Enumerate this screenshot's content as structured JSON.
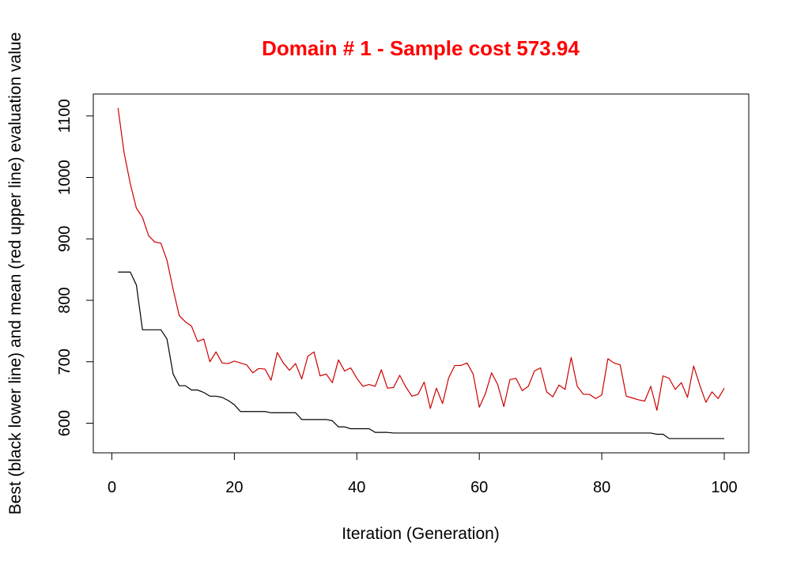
{
  "chart_data": {
    "type": "line",
    "title": "Domain # 1  - Sample cost 573.94",
    "xlabel": "Iteration (Generation)",
    "ylabel": "Best (black lower line) and mean (red upper line) evaluation value",
    "xlim": [
      1,
      100
    ],
    "ylim": [
      555,
      1135
    ],
    "xticks": [
      0,
      20,
      40,
      60,
      80,
      100
    ],
    "yticks": [
      600,
      700,
      800,
      900,
      1000,
      1100
    ],
    "grid": false,
    "legend": "none",
    "x": [
      1,
      2,
      3,
      4,
      5,
      6,
      7,
      8,
      9,
      10,
      11,
      12,
      13,
      14,
      15,
      16,
      17,
      18,
      19,
      20,
      21,
      22,
      23,
      24,
      25,
      26,
      27,
      28,
      29,
      30,
      31,
      32,
      33,
      34,
      35,
      36,
      37,
      38,
      39,
      40,
      41,
      42,
      43,
      44,
      45,
      46,
      47,
      48,
      49,
      50,
      51,
      52,
      53,
      54,
      55,
      56,
      57,
      58,
      59,
      60,
      61,
      62,
      63,
      64,
      65,
      66,
      67,
      68,
      69,
      70,
      71,
      72,
      73,
      74,
      75,
      76,
      77,
      78,
      79,
      80,
      81,
      82,
      83,
      84,
      85,
      86,
      87,
      88,
      89,
      90,
      91,
      92,
      93,
      94,
      95,
      96,
      97,
      98,
      99,
      100
    ],
    "series": [
      {
        "color": "#cc0000",
        "values": [
          1113,
          1040,
          990,
          950,
          935,
          905,
          895,
          893,
          865,
          818,
          775,
          765,
          758,
          733,
          737,
          700,
          716,
          698,
          697,
          701,
          698,
          695,
          682,
          689,
          688,
          670,
          715,
          698,
          686,
          697,
          672,
          709,
          716,
          677,
          680,
          666,
          703,
          685,
          690,
          673,
          660,
          663,
          660,
          687,
          657,
          658,
          678,
          659,
          644,
          647,
          667,
          624,
          657,
          632,
          674,
          694,
          694,
          698,
          680,
          626,
          648,
          682,
          663,
          627,
          671,
          673,
          653,
          660,
          685,
          690,
          651,
          643,
          662,
          655,
          707,
          660,
          647,
          647,
          640,
          646,
          705,
          698,
          695,
          644,
          641,
          638,
          636,
          660,
          621,
          677,
          673,
          655,
          666,
          642,
          693,
          662,
          634,
          651,
          640,
          657
        ]
      },
      {
        "color": "#000000",
        "values": [
          846,
          846,
          846,
          825,
          752,
          752,
          752,
          752,
          737,
          680,
          661,
          661,
          654,
          654,
          650,
          644,
          644,
          642,
          637,
          630,
          619,
          619,
          619,
          619,
          619,
          617,
          617,
          617,
          617,
          617,
          606,
          606,
          606,
          606,
          606,
          604,
          594,
          594,
          591,
          591,
          591,
          591,
          585,
          585,
          585,
          584,
          584,
          584,
          584,
          584,
          584,
          584,
          584,
          584,
          584,
          584,
          584,
          584,
          584,
          584,
          584,
          584,
          584,
          584,
          584,
          584,
          584,
          584,
          584,
          584,
          584,
          584,
          584,
          584,
          584,
          584,
          584,
          584,
          584,
          584,
          584,
          584,
          584,
          584,
          584,
          584,
          584,
          584,
          582,
          582,
          575,
          575,
          575,
          575,
          575,
          575,
          575,
          575,
          575,
          575
        ]
      }
    ]
  }
}
